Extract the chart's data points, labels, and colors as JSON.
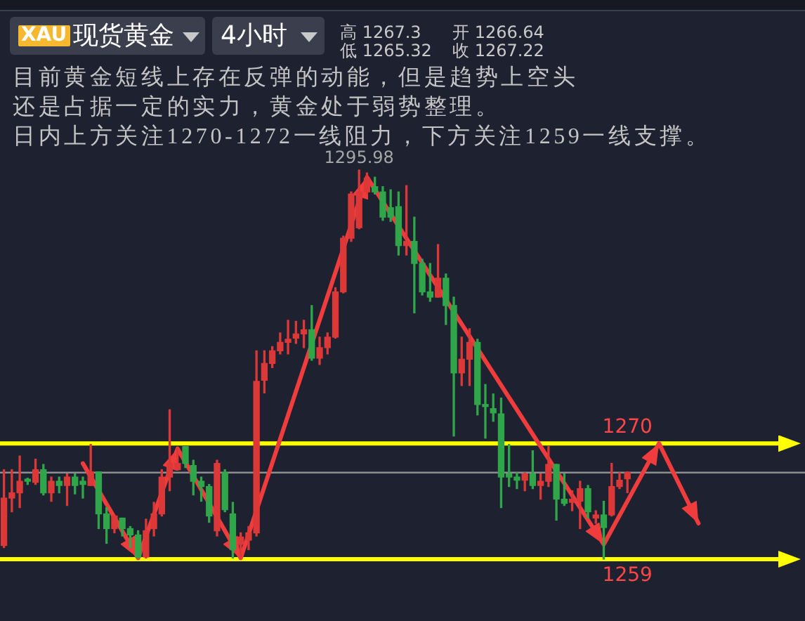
{
  "chart_data": {
    "type": "candlestick",
    "title": "现货黄金",
    "subtitle": "4小时",
    "annotations": [
      "XAU",
      "高 1267.3",
      "低 1265.32",
      "开 1266.64",
      "收 1267.22",
      "目前黄金短线上存在反弹的动能，但是趋势上空头",
      "还是占据一定的实力，黄金处于弱势整理。",
      "日内上方关注1270-1272一线阻力，下方关注1259一线支撑。",
      {
        "text": "1295.98",
        "y": 1295.98
      }
    ],
    "categories": [
      null,
      null,
      null,
      null,
      null,
      null,
      null,
      null,
      null,
      null,
      null,
      null,
      null,
      null,
      null,
      null,
      null,
      null,
      null,
      null,
      null,
      null,
      null,
      null,
      null,
      null,
      null,
      null,
      null,
      null,
      null,
      null,
      null,
      null,
      null,
      null,
      null,
      null,
      null,
      null,
      null,
      null,
      null,
      null,
      null,
      null,
      null,
      null,
      null,
      null,
      null,
      null,
      null,
      null,
      null,
      null,
      null,
      null,
      null,
      null,
      null,
      null,
      null,
      null,
      null,
      null,
      null,
      null,
      null,
      null,
      null,
      null,
      null,
      null,
      null,
      null,
      null,
      null,
      null,
      null,
      null,
      null,
      null,
      null,
      null,
      null,
      null,
      null,
      null,
      null,
      null,
      null,
      null,
      null,
      null,
      null,
      null,
      null,
      null,
      null,
      null,
      null
    ],
    "ohlc": [
      [
        1260.3,
        1267.5,
        1260.1,
        1264.8
      ],
      [
        1264.8,
        1267.5,
        1263.5,
        1265.3
      ],
      [
        1265.3,
        1268.8,
        1263.9,
        1266.4
      ],
      [
        1266.6,
        1266.7,
        1266.1,
        1266.4
      ],
      [
        1266.3,
        1268.5,
        1266.1,
        1267.5
      ],
      [
        1267.5,
        1268.0,
        1265.1,
        1265.3
      ],
      [
        1265.3,
        1266.8,
        1264.5,
        1266.4
      ],
      [
        1266.4,
        1266.8,
        1265.3,
        1266.0
      ],
      [
        1266.0,
        1267.1,
        1264.1,
        1266.8
      ],
      [
        1266.8,
        1267.1,
        1265.2,
        1266.0
      ],
      [
        1266.4,
        1266.8,
        1264.8,
        1266.1
      ],
      [
        1266.0,
        1269.9,
        1266.0,
        1267.3
      ],
      [
        1267.3,
        1267.3,
        1261.9,
        1263.3
      ],
      [
        1263.3,
        1263.9,
        1260.5,
        1261.9
      ],
      [
        1261.9,
        1263.1,
        1261.5,
        1263.1
      ],
      [
        1262.9,
        1262.9,
        1261.2,
        1261.9
      ],
      [
        1261.9,
        1262.1,
        1260.1,
        1261.3
      ],
      [
        1261.3,
        1261.7,
        1259.1,
        1259.2
      ],
      [
        1259.2,
        1262.8,
        1259.1,
        1261.7
      ],
      [
        1261.9,
        1264.4,
        1261.2,
        1263.3
      ],
      [
        1263.3,
        1267.5,
        1263.1,
        1266.8
      ],
      [
        1266.8,
        1273.2,
        1265.5,
        1268.1
      ],
      [
        1267.5,
        1269.5,
        1267.5,
        1268.1
      ],
      [
        1269.7,
        1269.7,
        1267.7,
        1268.1
      ],
      [
        1267.9,
        1268.4,
        1265.1,
        1266.4
      ],
      [
        1266.4,
        1266.8,
        1264.5,
        1265.9
      ],
      [
        1265.9,
        1266.1,
        1262.5,
        1263.1
      ],
      [
        1261.7,
        1268.4,
        1261.2,
        1268.1
      ],
      [
        1267.2,
        1267.5,
        1263.5,
        1263.7
      ],
      [
        1263.3,
        1264.4,
        1259.1,
        1259.9
      ],
      [
        1260.4,
        1261.5,
        1259.2,
        1261.1
      ],
      [
        1260.8,
        1262.1,
        1259.9,
        1261.5
      ],
      [
        1261.5,
        1278.8,
        1261.2,
        1275.9
      ],
      [
        1276.0,
        1278.8,
        1274.8,
        1277.6
      ],
      [
        1277.6,
        1279.2,
        1277.2,
        1278.8
      ],
      [
        1278.8,
        1280.5,
        1278.5,
        1279.6
      ],
      [
        1279.6,
        1281.7,
        1278.5,
        1279.9
      ],
      [
        1280.0,
        1281.6,
        1279.5,
        1280.4
      ],
      [
        1280.4,
        1281.7,
        1279.1,
        1280.8
      ],
      [
        1280.8,
        1283.1,
        1277.9,
        1278.1
      ],
      [
        1278.1,
        1280.1,
        1277.5,
        1279.1
      ],
      [
        1279.1,
        1280.5,
        1278.5,
        1280.1
      ],
      [
        1280.1,
        1284.8,
        1280.0,
        1284.4
      ],
      [
        1284.4,
        1289.7,
        1284.3,
        1289.5
      ],
      [
        1289.5,
        1293.9,
        1289.2,
        1293.7
      ],
      [
        1290.5,
        1295.98,
        1290.4,
        1293.9
      ],
      [
        1293.9,
        1295.7,
        1293.7,
        1295.2
      ],
      [
        1294.4,
        1295.3,
        1293.7,
        1293.9
      ],
      [
        1293.9,
        1294.4,
        1291.2,
        1291.5
      ],
      [
        1292.4,
        1294.1,
        1291.1,
        1291.5
      ],
      [
        1292.5,
        1293.9,
        1287.9,
        1288.8
      ],
      [
        1288.8,
        1294.5,
        1287.9,
        1289.2
      ],
      [
        1289.2,
        1291.5,
        1282.4,
        1287.1
      ],
      [
        1287.1,
        1287.5,
        1284.1,
        1284.4
      ],
      [
        1284.4,
        1287.1,
        1283.5,
        1283.9
      ],
      [
        1283.9,
        1288.9,
        1283.9,
        1285.7
      ],
      [
        1285.7,
        1286.1,
        1281.3,
        1283.1
      ],
      [
        1283.1,
        1283.9,
        1270.7,
        1276.7
      ],
      [
        1276.7,
        1280.1,
        1275.5,
        1278.0
      ],
      [
        1278.0,
        1280.9,
        1275.5,
        1279.6
      ],
      [
        1279.6,
        1279.9,
        1272.7,
        1273.7
      ],
      [
        1273.7,
        1275.6,
        1270.5,
        1273.5
      ],
      [
        1273.3,
        1274.7,
        1272.1,
        1272.9
      ],
      [
        1272.8,
        1274.3,
        1263.9,
        1266.8
      ],
      [
        1267.1,
        1269.9,
        1265.9,
        1266.8
      ],
      [
        1266.8,
        1267.2,
        1265.7,
        1266.5
      ],
      [
        1266.5,
        1267.2,
        1265.5,
        1267.1
      ],
      [
        1267.1,
        1269.3,
        1265.7,
        1266.0
      ],
      [
        1266.0,
        1267.1,
        1264.7,
        1266.4
      ],
      [
        1266.4,
        1269.7,
        1265.9,
        1268.0
      ],
      [
        1268.0,
        1268.0,
        1262.7,
        1264.7
      ],
      [
        1264.7,
        1267.1,
        1264.1,
        1264.3
      ],
      [
        1264.4,
        1265.5,
        1263.6,
        1264.7
      ],
      [
        1264.5,
        1266.4,
        1261.9,
        1265.7
      ],
      [
        1265.7,
        1266.0,
        1262.9,
        1263.5
      ],
      [
        1262.9,
        1263.6,
        1262.4,
        1263.2
      ],
      [
        1263.2,
        1264.5,
        1259.0,
        1262.0
      ],
      [
        1263.2,
        1268.1,
        1263.1,
        1265.9
      ],
      [
        1265.9,
        1267.2,
        1265.7,
        1266.5
      ],
      [
        1266.64,
        1267.3,
        1265.32,
        1267.22
      ],
      null,
      null,
      null,
      null,
      null,
      null,
      null,
      null,
      null,
      null,
      null,
      null,
      null,
      null,
      null,
      null,
      null,
      null,
      null,
      null,
      null,
      null
    ],
    "colors": [
      "#dc3838",
      "#dc3838",
      "#dc3838",
      "#30a64a",
      "#dc3838",
      "#30a64a",
      "#dc3838",
      "#30a64a",
      "#dc3838",
      "#30a64a",
      "#30a64a",
      "#dc3838",
      "#30a64a",
      "#30a64a",
      "#dc3838",
      "#30a64a",
      "#30a64a",
      "#30a64a",
      "#dc3838",
      "#dc3838",
      "#dc3838",
      "#dc3838",
      "#dc3838",
      "#30a64a",
      "#30a64a",
      "#30a64a",
      "#30a64a",
      "#dc3838",
      "#30a64a",
      "#30a64a",
      "#dc3838",
      "#dc3838",
      "#dc3838",
      "#dc3838",
      "#dc3838",
      "#dc3838",
      "#dc3838",
      "#dc3838",
      "#dc3838",
      "#30a64a",
      "#dc3838",
      "#dc3838",
      "#dc3838",
      "#dc3838",
      "#dc3838",
      "#dc3838",
      "#dc3838",
      "#30a64a",
      "#30a64a",
      "#30a64a",
      "#30a64a",
      "#dc3838",
      "#30a64a",
      "#30a64a",
      "#30a64a",
      "#dc3838",
      "#30a64a",
      "#30a64a",
      "#dc3838",
      "#dc3838",
      "#30a64a",
      "#30a64a",
      "#30a64a",
      "#30a64a",
      "#30a64a",
      "#30a64a",
      "#dc3838",
      "#30a64a",
      "#dc3838",
      "#dc3838",
      "#30a64a",
      "#30a64a",
      "#dc3838",
      "#dc3838",
      "#30a64a",
      "#dc3838",
      "#30a64a",
      "#dc3838",
      "#dc3838",
      "#dc3838",
      null,
      null,
      null,
      null,
      null,
      null,
      null,
      null,
      null,
      null,
      null,
      null,
      null,
      null,
      null,
      null,
      null,
      null,
      null,
      null,
      null,
      null
    ],
    "series": [
      {
        "type": "line",
        "color": "#f03c3c",
        "values": [
          null,
          null,
          null,
          null,
          null,
          null,
          null,
          null,
          null,
          null,
          1268.1,
          null,
          null,
          null,
          null,
          null,
          null,
          1259.1,
          null,
          null,
          null,
          null,
          1269.5,
          null,
          null,
          null,
          null,
          null,
          null,
          null,
          1259.1,
          null,
          null,
          null,
          null,
          null,
          null,
          null,
          null,
          null,
          null,
          null,
          null,
          null,
          null,
          null,
          1295.3,
          null,
          null,
          null,
          null,
          null,
          null,
          null,
          null,
          null,
          null,
          null,
          null,
          null,
          null,
          null,
          null,
          null,
          null,
          null,
          null,
          null,
          null,
          null,
          null,
          null,
          null,
          null,
          null,
          null,
          1260.4,
          null,
          null,
          null,
          null,
          null,
          null,
          1270.0,
          null,
          null,
          null,
          null,
          1262.4,
          null,
          null,
          null,
          null,
          null,
          null,
          null,
          null,
          null,
          null,
          null,
          null,
          null
        ]
      }
    ],
    "ref_lines": [
      {
        "axis": "y",
        "value": 1270,
        "label": "1270",
        "color": "#ffff00"
      },
      {
        "axis": "y",
        "value": 1259,
        "label": "1259",
        "color": "#ffff00"
      },
      {
        "axis": "y",
        "value": 1267.22,
        "color": "#8e8e8e"
      }
    ],
    "tick_labels": false
  }
}
